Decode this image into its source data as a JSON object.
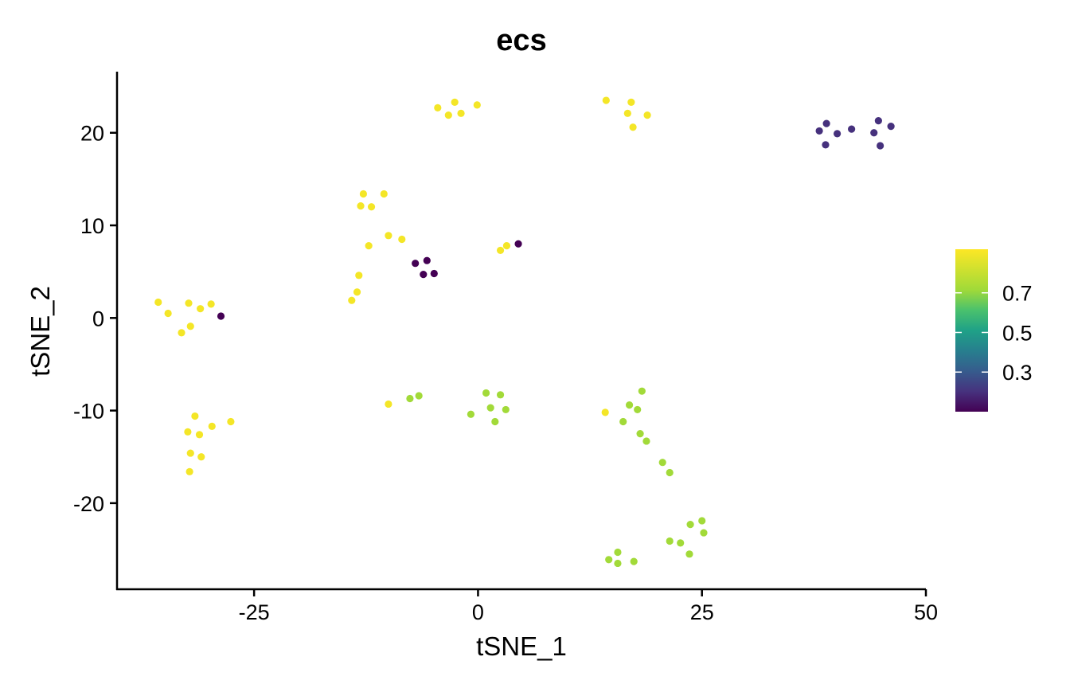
{
  "chart_data": {
    "type": "scatter",
    "title": "ecs",
    "xlabel": "tSNE_1",
    "ylabel": "tSNE_2",
    "xlim": [
      -40.3,
      50
    ],
    "ylim": [
      -29.3,
      26.6
    ],
    "xticks": [
      -25,
      0,
      25,
      50
    ],
    "xtick_labels": [
      "-25",
      "0",
      "25",
      "50"
    ],
    "yticks": [
      -20,
      -10,
      0,
      10,
      20
    ],
    "ytick_labels": [
      "-20",
      "-10",
      "0",
      "10",
      "20"
    ],
    "grid": false,
    "colorbar": {
      "colormap": "viridis",
      "range": [
        0.1,
        0.92
      ],
      "ticks": [
        0.3,
        0.5,
        0.7
      ],
      "tick_labels": [
        "0.3",
        "0.5",
        "0.7"
      ],
      "placement": "right"
    },
    "colors": {
      "high": "#fde725",
      "mid": "#5ec962",
      "low": "#440154",
      "low2": "#3b2a6e"
    },
    "points": [
      {
        "x": 17.1,
        "y": 23.3,
        "v": 0.9
      },
      {
        "x": 16.7,
        "y": 22.1,
        "v": 0.9
      },
      {
        "x": 14.3,
        "y": 23.5,
        "v": 0.9
      },
      {
        "x": 18.9,
        "y": 21.9,
        "v": 0.9
      },
      {
        "x": 17.3,
        "y": 20.6,
        "v": 0.9
      },
      {
        "x": -4.5,
        "y": 22.7,
        "v": 0.9
      },
      {
        "x": -2.6,
        "y": 23.3,
        "v": 0.9
      },
      {
        "x": -0.1,
        "y": 23.0,
        "v": 0.9
      },
      {
        "x": -3.3,
        "y": 21.9,
        "v": 0.9
      },
      {
        "x": -1.9,
        "y": 22.1,
        "v": 0.9
      },
      {
        "x": -12.8,
        "y": 13.4,
        "v": 0.9
      },
      {
        "x": -10.5,
        "y": 13.4,
        "v": 0.9
      },
      {
        "x": -13.1,
        "y": 12.1,
        "v": 0.9
      },
      {
        "x": -11.9,
        "y": 12.0,
        "v": 0.9
      },
      {
        "x": -12.2,
        "y": 7.8,
        "v": 0.9
      },
      {
        "x": -10.0,
        "y": 8.9,
        "v": 0.9
      },
      {
        "x": -8.5,
        "y": 8.5,
        "v": 0.9
      },
      {
        "x": -13.3,
        "y": 4.6,
        "v": 0.9
      },
      {
        "x": -13.5,
        "y": 2.8,
        "v": 0.9
      },
      {
        "x": -14.1,
        "y": 1.9,
        "v": 0.9
      },
      {
        "x": 2.5,
        "y": 7.3,
        "v": 0.9
      },
      {
        "x": 3.2,
        "y": 7.8,
        "v": 0.9
      },
      {
        "x": -35.7,
        "y": 1.7,
        "v": 0.9
      },
      {
        "x": -34.6,
        "y": 0.5,
        "v": 0.9
      },
      {
        "x": -32.3,
        "y": 1.6,
        "v": 0.9
      },
      {
        "x": -31.0,
        "y": 1.0,
        "v": 0.9
      },
      {
        "x": -29.8,
        "y": 1.5,
        "v": 0.9
      },
      {
        "x": -33.1,
        "y": -1.6,
        "v": 0.9
      },
      {
        "x": -32.1,
        "y": -0.9,
        "v": 0.9
      },
      {
        "x": -10.0,
        "y": -9.3,
        "v": 0.9
      },
      {
        "x": -31.6,
        "y": -10.6,
        "v": 0.9
      },
      {
        "x": -29.7,
        "y": -11.7,
        "v": 0.9
      },
      {
        "x": -27.6,
        "y": -11.2,
        "v": 0.9
      },
      {
        "x": -32.4,
        "y": -12.3,
        "v": 0.9
      },
      {
        "x": -31.1,
        "y": -12.6,
        "v": 0.9
      },
      {
        "x": -32.1,
        "y": -14.6,
        "v": 0.9
      },
      {
        "x": -30.9,
        "y": -15.0,
        "v": 0.9
      },
      {
        "x": -32.2,
        "y": -16.6,
        "v": 0.9
      },
      {
        "x": 14.2,
        "y": -10.2,
        "v": 0.9
      },
      {
        "x": -7.6,
        "y": -8.7,
        "v": 0.72
      },
      {
        "x": -6.6,
        "y": -8.4,
        "v": 0.72
      },
      {
        "x": 0.9,
        "y": -8.1,
        "v": 0.72
      },
      {
        "x": 2.5,
        "y": -8.3,
        "v": 0.72
      },
      {
        "x": -0.8,
        "y": -10.4,
        "v": 0.72
      },
      {
        "x": 1.4,
        "y": -9.7,
        "v": 0.72
      },
      {
        "x": 3.1,
        "y": -9.9,
        "v": 0.72
      },
      {
        "x": 1.9,
        "y": -11.2,
        "v": 0.72
      },
      {
        "x": 16.9,
        "y": -9.4,
        "v": 0.72
      },
      {
        "x": 17.8,
        "y": -9.9,
        "v": 0.72
      },
      {
        "x": 18.3,
        "y": -7.9,
        "v": 0.72
      },
      {
        "x": 16.2,
        "y": -11.2,
        "v": 0.72
      },
      {
        "x": 18.1,
        "y": -12.5,
        "v": 0.72
      },
      {
        "x": 18.8,
        "y": -13.3,
        "v": 0.72
      },
      {
        "x": 20.6,
        "y": -15.6,
        "v": 0.72
      },
      {
        "x": 21.4,
        "y": -16.7,
        "v": 0.72
      },
      {
        "x": 23.7,
        "y": -22.3,
        "v": 0.72
      },
      {
        "x": 25.0,
        "y": -21.9,
        "v": 0.72
      },
      {
        "x": 25.2,
        "y": -23.2,
        "v": 0.72
      },
      {
        "x": 21.4,
        "y": -24.1,
        "v": 0.72
      },
      {
        "x": 22.6,
        "y": -24.3,
        "v": 0.72
      },
      {
        "x": 23.6,
        "y": -25.5,
        "v": 0.72
      },
      {
        "x": 14.6,
        "y": -26.1,
        "v": 0.72
      },
      {
        "x": 15.6,
        "y": -25.3,
        "v": 0.72
      },
      {
        "x": 15.6,
        "y": -26.5,
        "v": 0.72
      },
      {
        "x": 17.4,
        "y": -26.3,
        "v": 0.72
      },
      {
        "x": -28.7,
        "y": 0.2,
        "v": 0.1
      },
      {
        "x": -7.0,
        "y": 5.9,
        "v": 0.1
      },
      {
        "x": -5.7,
        "y": 6.2,
        "v": 0.1
      },
      {
        "x": -6.1,
        "y": 4.7,
        "v": 0.1
      },
      {
        "x": -4.9,
        "y": 4.8,
        "v": 0.1
      },
      {
        "x": 4.5,
        "y": 8.0,
        "v": 0.1
      },
      {
        "x": 38.1,
        "y": 20.2,
        "v": 0.2
      },
      {
        "x": 38.9,
        "y": 21.0,
        "v": 0.2
      },
      {
        "x": 40.1,
        "y": 19.9,
        "v": 0.2
      },
      {
        "x": 38.8,
        "y": 18.7,
        "v": 0.2
      },
      {
        "x": 41.7,
        "y": 20.4,
        "v": 0.2
      },
      {
        "x": 44.2,
        "y": 20.0,
        "v": 0.2
      },
      {
        "x": 44.7,
        "y": 21.3,
        "v": 0.2
      },
      {
        "x": 46.1,
        "y": 20.7,
        "v": 0.2
      },
      {
        "x": 44.9,
        "y": 18.6,
        "v": 0.2
      }
    ]
  }
}
